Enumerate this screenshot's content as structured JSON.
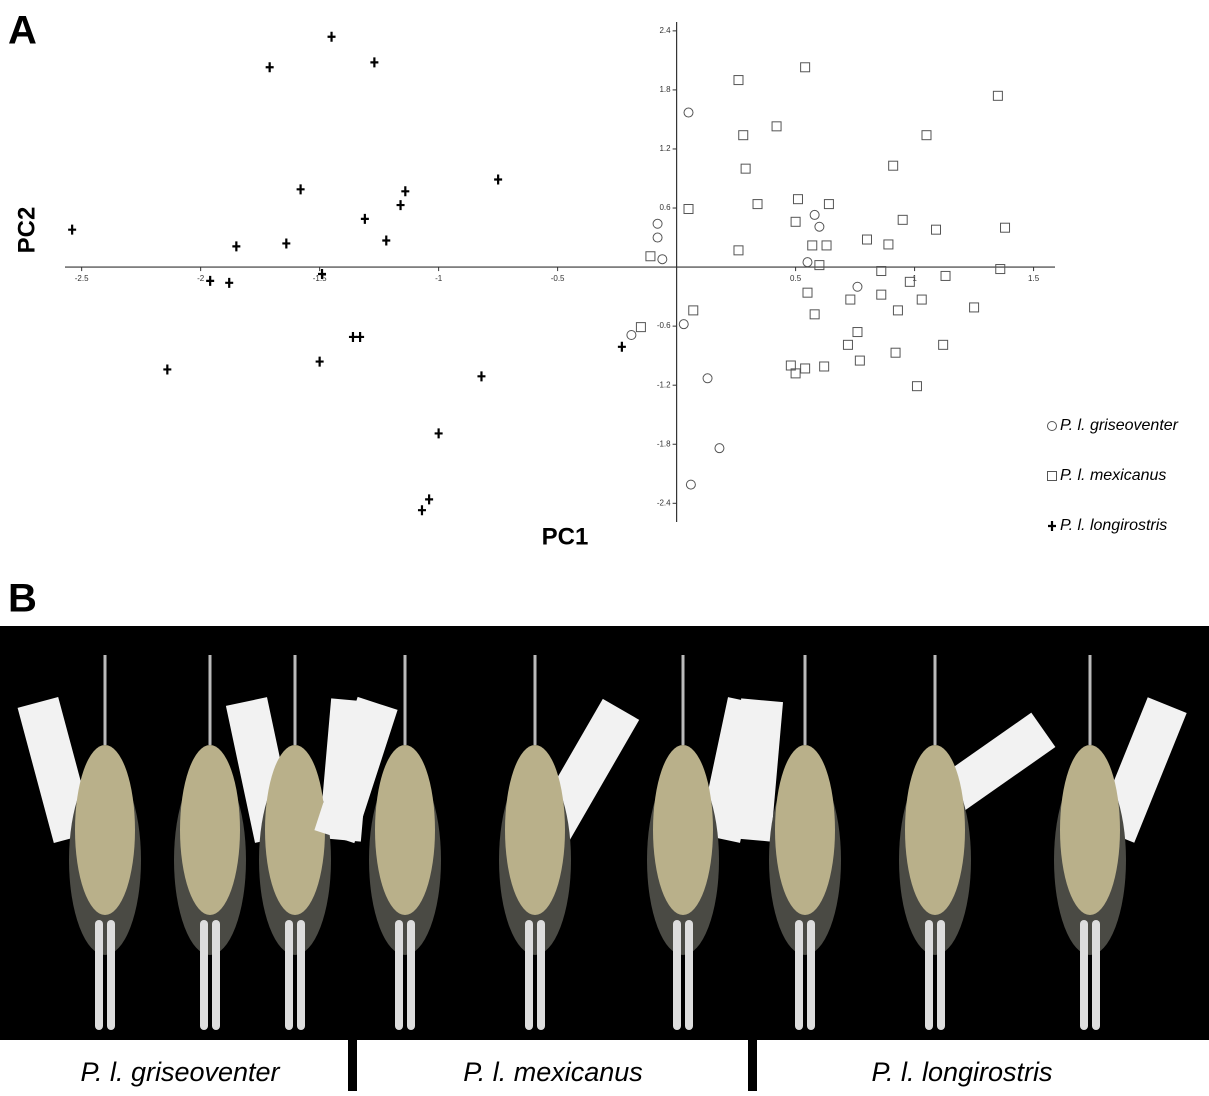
{
  "panel_labels": [
    "A",
    "B"
  ],
  "chart_data": {
    "type": "scatter",
    "xlabel": "PC1",
    "ylabel": "PC2",
    "xlim": [
      -2.57,
      1.59
    ],
    "ylim": [
      -2.59,
      2.49
    ],
    "xticks": [
      -2.5,
      -2,
      -1.5,
      -1,
      -0.5,
      0.5,
      1,
      1.5
    ],
    "yticks": [
      2.4,
      1.8,
      1.2,
      0.6,
      -0.6,
      -1.2,
      -1.8,
      -2.4
    ],
    "series": [
      {
        "name": "P. l. griseoventer",
        "marker": "circle",
        "color": "#555555",
        "x": [
          0.05,
          -0.08,
          -0.08,
          -0.06,
          -0.19,
          0.03,
          0.13,
          0.18,
          0.06,
          0.58,
          0.6,
          0.55,
          0.76
        ],
        "y": [
          1.57,
          0.44,
          0.3,
          0.08,
          -0.69,
          -0.58,
          -1.13,
          -1.84,
          -2.21,
          0.53,
          0.41,
          0.05,
          -0.2
        ]
      },
      {
        "name": "P. l. mexicanus",
        "marker": "square",
        "color": "#555555",
        "x": [
          0.26,
          0.54,
          1.35,
          0.42,
          0.28,
          1.05,
          0.29,
          0.91,
          0.05,
          0.34,
          0.51,
          0.64,
          0.5,
          0.95,
          1.09,
          1.38,
          0.8,
          0.89,
          0.57,
          0.63,
          0.26,
          -0.11,
          0.6,
          0.86,
          1.36,
          1.13,
          0.98,
          0.55,
          0.73,
          0.86,
          1.03,
          1.25,
          0.07,
          0.93,
          0.58,
          -0.15,
          0.76,
          0.72,
          1.12,
          0.92,
          0.77,
          0.62,
          0.48,
          0.5,
          0.54,
          1.01
        ],
        "y": [
          1.9,
          2.03,
          1.74,
          1.43,
          1.34,
          1.34,
          1.0,
          1.03,
          0.59,
          0.64,
          0.69,
          0.64,
          0.46,
          0.48,
          0.38,
          0.4,
          0.28,
          0.23,
          0.22,
          0.22,
          0.17,
          0.11,
          0.02,
          -0.04,
          -0.02,
          -0.09,
          -0.15,
          -0.26,
          -0.33,
          -0.28,
          -0.33,
          -0.41,
          -0.44,
          -0.44,
          -0.48,
          -0.61,
          -0.66,
          -0.79,
          -0.79,
          -0.87,
          -0.95,
          -1.01,
          -1.0,
          -1.08,
          -1.03,
          -1.21
        ]
      },
      {
        "name": "P. l. longirostris",
        "marker": "plus",
        "color": "#000000",
        "x": [
          -1.45,
          -1.71,
          -1.27,
          -2.54,
          -1.58,
          -0.75,
          -1.14,
          -1.16,
          -1.31,
          -1.22,
          -1.64,
          -1.85,
          -1.96,
          -1.88,
          -1.49,
          -1.36,
          -1.33,
          -1.5,
          -2.14,
          -0.82,
          -0.23,
          -1.0,
          -1.04,
          -1.07
        ],
        "y": [
          2.34,
          2.03,
          2.08,
          0.38,
          0.79,
          0.89,
          0.77,
          0.63,
          0.49,
          0.27,
          0.24,
          0.21,
          -0.14,
          -0.16,
          -0.07,
          -0.71,
          -0.71,
          -0.96,
          -1.04,
          -1.11,
          -0.81,
          -1.69,
          -2.36,
          -2.47
        ]
      }
    ]
  },
  "photo": {
    "captions": [
      "P. l. griseoventer",
      "P. l. mexicanus",
      "P. l. longirostris"
    ]
  }
}
